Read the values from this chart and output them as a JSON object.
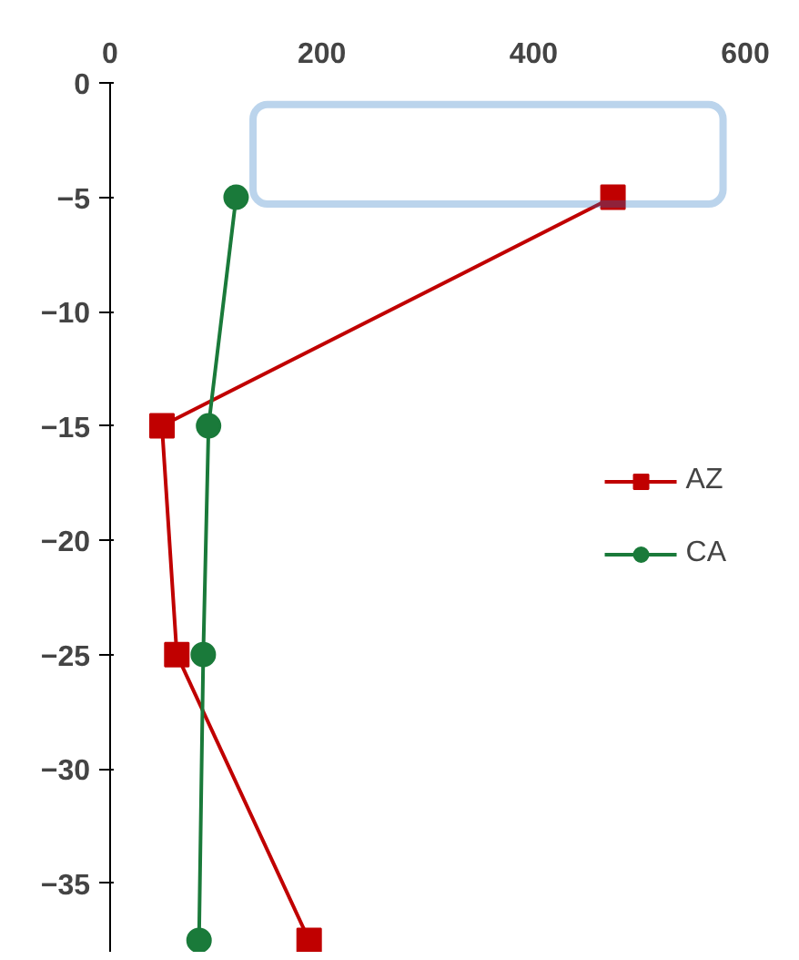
{
  "chart_data": {
    "type": "line",
    "xlim": [
      0,
      600
    ],
    "xticks": [
      0,
      200,
      400,
      600
    ],
    "ylim": [
      -38,
      0
    ],
    "yticks": [
      0,
      -5,
      -10,
      -15,
      -20,
      -25,
      -30,
      -35
    ],
    "grid": false,
    "legend": "right",
    "series": [
      {
        "name": "AZ",
        "color": "#c00000",
        "marker": "square",
        "x": [
          475,
          49,
          63,
          188
        ],
        "values": [
          -5,
          -15,
          -25,
          -37.5
        ]
      },
      {
        "name": "CA",
        "color": "#1a7a3a",
        "marker": "circle",
        "x": [
          119,
          93,
          88,
          84
        ],
        "values": [
          -5,
          -15,
          -25,
          -37.5
        ]
      }
    ]
  }
}
